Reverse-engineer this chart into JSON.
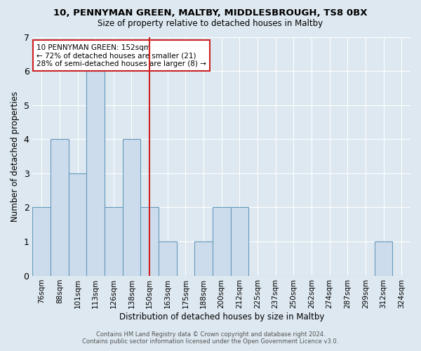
{
  "title1": "10, PENNYMAN GREEN, MALTBY, MIDDLESBROUGH, TS8 0BX",
  "title2": "Size of property relative to detached houses in Maltby",
  "xlabel": "Distribution of detached houses by size in Maltby",
  "ylabel": "Number of detached properties",
  "categories": [
    "76sqm",
    "88sqm",
    "101sqm",
    "113sqm",
    "126sqm",
    "138sqm",
    "150sqm",
    "163sqm",
    "175sqm",
    "188sqm",
    "200sqm",
    "212sqm",
    "225sqm",
    "237sqm",
    "250sqm",
    "262sqm",
    "274sqm",
    "287sqm",
    "299sqm",
    "312sqm",
    "324sqm"
  ],
  "values": [
    2,
    4,
    3,
    6,
    2,
    4,
    2,
    1,
    0,
    1,
    2,
    2,
    0,
    0,
    0,
    0,
    0,
    0,
    0,
    1,
    0
  ],
  "bar_color": "#ccdcec",
  "bar_edge_color": "#6699bb",
  "vline_color": "#cc2222",
  "vline_x_index": 6,
  "ylim": [
    0,
    7
  ],
  "yticks": [
    0,
    1,
    2,
    3,
    4,
    5,
    6,
    7
  ],
  "annotation_title": "10 PENNYMAN GREEN: 152sqm",
  "annotation_line1": "← 72% of detached houses are smaller (21)",
  "annotation_line2": "28% of semi-detached houses are larger (8) →",
  "annotation_box_color": "#ffffff",
  "annotation_box_edge": "#cc2222",
  "footer1": "Contains HM Land Registry data © Crown copyright and database right 2024.",
  "footer2": "Contains public sector information licensed under the Open Government Licence v3.0.",
  "bg_color": "#dde8f0",
  "plot_bg_color": "#dde8f0"
}
